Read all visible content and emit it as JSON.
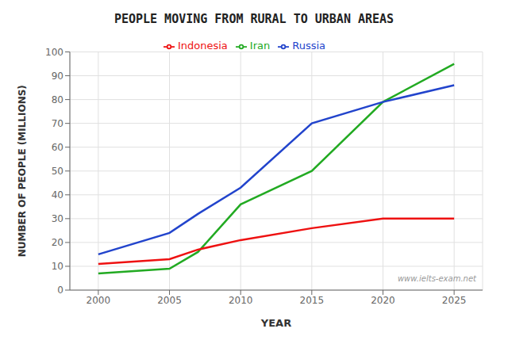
{
  "chart_data": {
    "type": "line",
    "title": "PEOPLE MOVING FROM RURAL TO URBAN AREAS",
    "xlabel": "YEAR",
    "ylabel": "NUMBER OF PEOPLE (MILLIONS)",
    "annotations": [
      "www.ielts-exam.net"
    ],
    "x": [
      2000,
      2005,
      2007,
      2010,
      2015,
      2020,
      2025
    ],
    "series": [
      {
        "name": "Iran",
        "color": "#22aa22",
        "values": [
          7,
          9,
          16,
          36,
          50,
          79,
          95
        ]
      },
      {
        "name": "Indonesia",
        "color": "#ee1111",
        "values": [
          11,
          13,
          17,
          21,
          26,
          30,
          30
        ]
      },
      {
        "name": "Russia",
        "color": "#2244cc",
        "values": [
          15,
          24,
          32,
          43,
          70,
          79,
          86
        ]
      }
    ],
    "xlim": [
      1998,
      2027
    ],
    "ylim": [
      0,
      100
    ],
    "xticks": [
      2000,
      2005,
      2010,
      2015,
      2020,
      2025
    ],
    "yticks": [
      0,
      10,
      20,
      30,
      40,
      50,
      60,
      70,
      80,
      90,
      100
    ],
    "grid": true,
    "legend": "top"
  }
}
